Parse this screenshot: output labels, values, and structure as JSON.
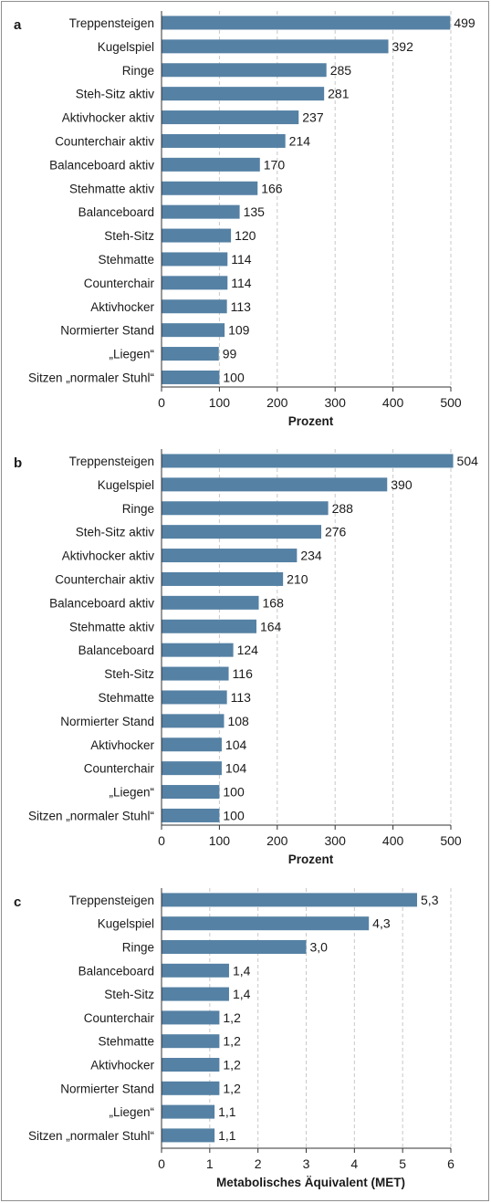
{
  "chart_data": [
    {
      "type": "bar",
      "orientation": "horizontal",
      "panel_label": "a",
      "categories": [
        "Treppensteigen",
        "Kugelspiel",
        "Ringe",
        "Steh-Sitz aktiv",
        "Aktivhocker aktiv",
        "Counterchair aktiv",
        "Balanceboard aktiv",
        "Stehmatte aktiv",
        "Balanceboard",
        "Steh-Sitz",
        "Stehmatte",
        "Counterchair",
        "Aktivhocker",
        "Normierter Stand",
        "„Liegen“",
        "Sitzen „normaler Stuhl“"
      ],
      "values": [
        499,
        392,
        285,
        281,
        237,
        214,
        170,
        166,
        135,
        120,
        114,
        114,
        113,
        109,
        99,
        100
      ],
      "value_labels": [
        "499",
        "392",
        "285",
        "281",
        "237",
        "214",
        "170",
        "166",
        "135",
        "120",
        "114",
        "114",
        "113",
        "109",
        "99",
        "100"
      ],
      "xlabel": "Prozent",
      "xlim": [
        0,
        500
      ],
      "xticks": [
        0,
        100,
        200,
        300,
        400,
        500
      ],
      "xtick_labels": [
        "0",
        "100",
        "200",
        "300",
        "400",
        "500"
      ],
      "grid": "vertical dashed",
      "bar_color": "#5581a4"
    },
    {
      "type": "bar",
      "orientation": "horizontal",
      "panel_label": "b",
      "categories": [
        "Treppensteigen",
        "Kugelspiel",
        "Ringe",
        "Steh-Sitz aktiv",
        "Aktivhocker aktiv",
        "Counterchair aktiv",
        "Balanceboard aktiv",
        "Stehmatte aktiv",
        "Balanceboard",
        "Steh-Sitz",
        "Stehmatte",
        "Normierter Stand",
        "Aktivhocker",
        "Counterchair",
        "„Liegen“",
        "Sitzen „normaler Stuhl“"
      ],
      "values": [
        504,
        390,
        288,
        276,
        234,
        210,
        168,
        164,
        124,
        116,
        113,
        108,
        104,
        104,
        100,
        100
      ],
      "value_labels": [
        "504",
        "390",
        "288",
        "276",
        "234",
        "210",
        "168",
        "164",
        "124",
        "116",
        "113",
        "108",
        "104",
        "104",
        "100",
        "100"
      ],
      "xlabel": "Prozent",
      "xlim": [
        0,
        500
      ],
      "xticks": [
        0,
        100,
        200,
        300,
        400,
        500
      ],
      "xtick_labels": [
        "0",
        "100",
        "200",
        "300",
        "400",
        "500"
      ],
      "grid": "vertical dashed",
      "bar_color": "#5581a4"
    },
    {
      "type": "bar",
      "orientation": "horizontal",
      "panel_label": "c",
      "categories": [
        "Treppensteigen",
        "Kugelspiel",
        "Ringe",
        "Balanceboard",
        "Steh-Sitz",
        "Counterchair",
        "Stehmatte",
        "Aktivhocker",
        "Normierter Stand",
        "„Liegen“",
        "Sitzen „normaler Stuhl“"
      ],
      "values": [
        5.3,
        4.3,
        3.0,
        1.4,
        1.4,
        1.2,
        1.2,
        1.2,
        1.2,
        1.1,
        1.1
      ],
      "value_labels": [
        "5,3",
        "4,3",
        "3,0",
        "1,4",
        "1,4",
        "1,2",
        "1,2",
        "1,2",
        "1,2",
        "1,1",
        "1,1"
      ],
      "xlabel": "Metabolisches Äquivalent (MET)",
      "xlim": [
        0,
        6
      ],
      "xticks": [
        0,
        1,
        2,
        3,
        4,
        5,
        6
      ],
      "xtick_labels": [
        "0",
        "1",
        "2",
        "3",
        "4",
        "5",
        "6"
      ],
      "grid": "vertical dashed",
      "bar_color": "#5581a4"
    }
  ]
}
